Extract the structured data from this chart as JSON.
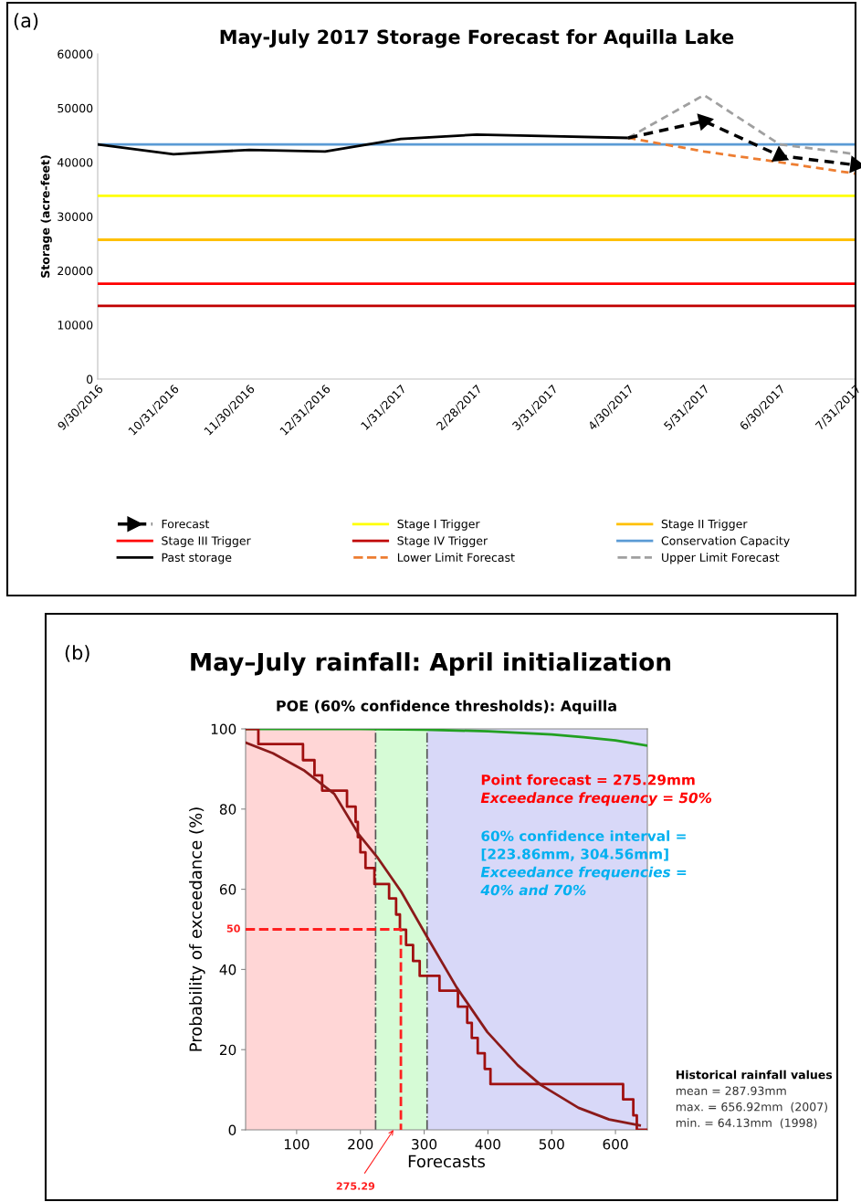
{
  "chart_data": [
    {
      "type": "line",
      "title": "May-July 2017 Storage Forecast for Aquilla Lake",
      "ylabel": "Storage (acre-feet)",
      "categories": [
        "9/30/2016",
        "10/31/2016",
        "11/30/2016",
        "12/31/2016",
        "1/31/2017",
        "2/28/2017",
        "3/31/2017",
        "4/30/2017",
        "5/31/2017",
        "6/30/2017",
        "7/31/2017"
      ],
      "ylim": [
        0,
        60000
      ],
      "yticks": [
        0,
        10000,
        20000,
        30000,
        40000,
        50000,
        60000
      ],
      "grid": false,
      "legend": "bottom",
      "annotations": [
        "(a)"
      ],
      "series": [
        {
          "name": "Forecast",
          "color": "#000000",
          "line_style": "dashed",
          "marker": "triangle",
          "values": [
            null,
            null,
            null,
            null,
            null,
            null,
            null,
            44500,
            47600,
            41200,
            39500
          ]
        },
        {
          "name": "Stage I Trigger",
          "color": "#ffff00",
          "values": [
            33800,
            33800,
            33800,
            33800,
            33800,
            33800,
            33800,
            33800,
            33800,
            33800,
            33800
          ]
        },
        {
          "name": "Stage II Trigger",
          "color": "#ffc000",
          "values": [
            25700,
            25700,
            25700,
            25700,
            25700,
            25700,
            25700,
            25700,
            25700,
            25700,
            25700
          ]
        },
        {
          "name": "Stage III Trigger",
          "color": "#ff0000",
          "values": [
            17600,
            17600,
            17600,
            17600,
            17600,
            17600,
            17600,
            17600,
            17600,
            17600,
            17600
          ]
        },
        {
          "name": "Stage IV Trigger",
          "color": "#c00000",
          "values": [
            13500,
            13500,
            13500,
            13500,
            13500,
            13500,
            13500,
            13500,
            13500,
            13500,
            13500
          ]
        },
        {
          "name": "Conservation Capacity",
          "color": "#5b9bd5",
          "values": [
            43300,
            43300,
            43300,
            43300,
            43300,
            43300,
            43300,
            43300,
            43300,
            43300,
            43300
          ]
        },
        {
          "name": "Past storage",
          "color": "#000000",
          "values": [
            43300,
            41500,
            42300,
            42000,
            44300,
            45100,
            44800,
            44500,
            null,
            null,
            null
          ]
        },
        {
          "name": "Lower Limit Forecast",
          "color": "#ed7d31",
          "line_style": "dashed",
          "values": [
            null,
            null,
            null,
            null,
            null,
            null,
            null,
            44500,
            42000,
            40000,
            37900
          ]
        },
        {
          "name": "Upper Limit Forecast",
          "color": "#a0a0a0",
          "line_style": "dashed",
          "values": [
            null,
            null,
            null,
            null,
            null,
            null,
            null,
            44500,
            52400,
            43300,
            41500
          ]
        }
      ]
    },
    {
      "type": "line",
      "title": "May–July rainfall: April initialization",
      "subtitle": "POE (60% confidence thresholds): Aquilla",
      "xlabel": "Forecasts",
      "ylabel": "Probability of exceedance (%)",
      "xlim": [
        20,
        650
      ],
      "xticks": [
        100,
        200,
        300,
        400,
        500,
        600
      ],
      "ylim": [
        0,
        100
      ],
      "yticks": [
        0,
        20,
        40,
        60,
        80,
        100
      ],
      "grid": false,
      "bands": [
        {
          "axis": "x",
          "from": 20,
          "to": 223.86,
          "color": "#ffd6d6"
        },
        {
          "axis": "x",
          "from": 223.86,
          "to": 304.56,
          "color": "#d6fbd6"
        },
        {
          "axis": "x",
          "from": 304.56,
          "to": 650,
          "color": "#d8d8f8"
        }
      ],
      "ref_lines": [
        {
          "axis": "x",
          "value": 223.86,
          "color": "#555555",
          "line_style": "dashed"
        },
        {
          "axis": "x",
          "value": 304.56,
          "color": "#555555",
          "line_style": "dashed"
        }
      ],
      "annotations": [
        "(b)",
        "Point forecast = 275.29mm",
        "Exceedance frequency = 50%",
        "60% confidence interval =",
        "[223.86mm, 304.56mm]",
        "Exceedance frequencies =",
        "40% and 70%",
        "Historical rainfall values",
        "mean = 287.93mm",
        "max. = 656.92mm  (2007)",
        "min. = 64.13mm  (1998)",
        {
          "text": "50",
          "x": 20,
          "y": 50
        },
        {
          "text": "275.29",
          "x": 252,
          "y": 0
        }
      ],
      "series": [
        {
          "type": "line",
          "color": "#22a022",
          "x": [
            20,
            200,
            300,
            400,
            500,
            550,
            600,
            650
          ],
          "values": [
            100,
            100,
            99.8,
            99.4,
            98.6,
            97.9,
            97.1,
            95.8
          ]
        },
        {
          "type": "step",
          "color": "#a01010",
          "x": [
            20,
            40,
            110,
            128,
            140,
            179,
            192.5,
            196,
            200,
            208,
            222,
            245,
            256,
            262,
            271.6,
            282.6,
            293,
            324,
            353,
            367.5,
            374.7,
            384,
            395,
            404,
            612,
            628,
            633.5,
            650
          ],
          "values": [
            100,
            96.2,
            92.2,
            88.4,
            84.6,
            80.6,
            76.8,
            73.0,
            69.2,
            65.3,
            61.3,
            57.7,
            53.7,
            49.9,
            46.1,
            42.1,
            38.4,
            34.7,
            30.7,
            26.7,
            22.9,
            19.1,
            15.2,
            11.4,
            7.6,
            3.6,
            0,
            0
          ]
        },
        {
          "type": "line",
          "color": "#8b1a1a",
          "x": [
            20,
            63,
            111,
            159,
            197,
            226,
            264,
            305,
            351,
            399,
            447,
            483,
            542,
            590,
            638
          ],
          "values": [
            96.6,
            93.9,
            89.7,
            83.8,
            73.8,
            68.1,
            59.4,
            48.0,
            35.5,
            24.4,
            16.1,
            11.2,
            5.5,
            2.6,
            1.1
          ]
        },
        {
          "type": "line",
          "color": "#ff2020",
          "line_style": "dashed",
          "x": [
            20,
            263.5,
            263.5
          ],
          "values": [
            50,
            50,
            0
          ]
        }
      ]
    }
  ]
}
